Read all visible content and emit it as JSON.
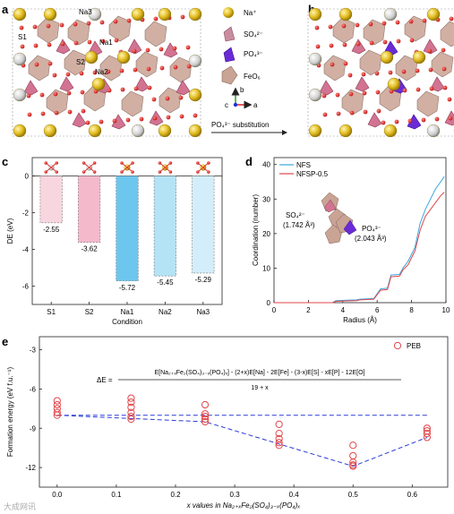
{
  "panels": {
    "a": {
      "letter": "a"
    },
    "b": {
      "letter": "b"
    },
    "c": {
      "letter": "c"
    },
    "d": {
      "letter": "d"
    },
    "e": {
      "letter": "e"
    }
  },
  "crystal": {
    "site_labels": [
      "Na3",
      "S1",
      "Na1",
      "S2",
      "Na2"
    ],
    "legend": [
      {
        "label": "Na⁺",
        "color": "#e8c431",
        "shape": "sphere"
      },
      {
        "label": "SO₄²⁻",
        "color": "#c98da0",
        "shape": "tetrahedron"
      },
      {
        "label": "PO₄³⁻",
        "color": "#6a2bd6",
        "shape": "tetrahedron"
      },
      {
        "label": "FeO₆",
        "color": "#c9a394",
        "shape": "octahedron"
      }
    ],
    "axes": {
      "b": "b",
      "c": "c",
      "a": "a"
    },
    "arrow_label": "PO₄³⁻ substitution"
  },
  "chart_data": [
    {
      "panel": "c",
      "type": "bar",
      "categories": [
        "S1",
        "S2",
        "Na1",
        "Na2",
        "Na3"
      ],
      "values": [
        -2.55,
        -3.62,
        -5.72,
        -5.45,
        -5.29
      ],
      "value_labels": [
        "-2.55",
        "-3.62",
        "-5.72",
        "-5.45",
        "-5.29"
      ],
      "colors": [
        "#f8d6e0",
        "#f4b9cb",
        "#6cc6ee",
        "#b5e3f6",
        "#d3eefa"
      ],
      "xlabel": "Condition",
      "ylabel": "DE (eV)",
      "ylim": [
        -7,
        1
      ],
      "yticks": [
        0,
        -2,
        -4,
        -6
      ],
      "ytick_labels": [
        "0",
        "-2",
        "-4",
        "-6"
      ]
    },
    {
      "panel": "d",
      "type": "line",
      "xlabel": "Radius (Å)",
      "ylabel": "Coordination (number)",
      "xlim": [
        0,
        10
      ],
      "ylim": [
        0,
        42
      ],
      "xticks": [
        0,
        2,
        4,
        6,
        8,
        10
      ],
      "xtick_labels": [
        "0",
        "2",
        "4",
        "6",
        "8",
        "10"
      ],
      "yticks": [
        0,
        10,
        20,
        30,
        40
      ],
      "ytick_labels": [
        "0",
        "10",
        "20",
        "30",
        "40"
      ],
      "legend_position": "top-left",
      "series": [
        {
          "name": "NFS",
          "color": "#3ba7dd",
          "x": [
            0,
            3.4,
            3.6,
            4.8,
            5.0,
            5.8,
            6.2,
            6.6,
            6.8,
            7.3,
            7.5,
            7.8,
            8.0,
            8.2,
            8.5,
            8.8,
            9.1,
            9.4,
            9.7,
            9.9
          ],
          "y": [
            0,
            0,
            0.6,
            0.8,
            1.0,
            1.2,
            4.0,
            4.2,
            8.0,
            8.2,
            10.0,
            12.0,
            14.0,
            16.0,
            23.0,
            27.0,
            30.0,
            33.0,
            35.0,
            36.5
          ]
        },
        {
          "name": "NFSP-0.5",
          "color": "#e0464a",
          "x": [
            0,
            3.4,
            3.6,
            4.8,
            5.0,
            5.8,
            6.2,
            6.6,
            6.8,
            7.3,
            7.5,
            7.8,
            8.0,
            8.2,
            8.5,
            8.8,
            9.1,
            9.4,
            9.7,
            9.9
          ],
          "y": [
            0,
            0,
            0.4,
            0.6,
            0.8,
            1.0,
            3.6,
            3.8,
            7.5,
            7.7,
            9.5,
            11.0,
            13.0,
            15.0,
            21.0,
            25.0,
            27.0,
            29.0,
            31.0,
            32.0
          ]
        }
      ],
      "annotations": [
        {
          "text": "SO₄²⁻"
        },
        {
          "text": "(1.742 Å³)"
        },
        {
          "text": "PO₄³⁻"
        },
        {
          "text": "(2.043 Å³)"
        }
      ]
    },
    {
      "panel": "e",
      "type": "scatter",
      "xlabel": "x values in Na₂₊ₓFe₂(SO₄)₃₋ₓ(PO₄)ₓ",
      "ylabel": "Formation energy (eV f.u.⁻¹)",
      "xlim": [
        -0.03,
        0.66
      ],
      "ylim": [
        -13.5,
        -2
      ],
      "xticks": [
        0.0,
        0.1,
        0.2,
        0.3,
        0.4,
        0.5,
        0.6
      ],
      "xtick_labels": [
        "0.0",
        "0.1",
        "0.2",
        "0.3",
        "0.4",
        "0.5",
        "0.6"
      ],
      "yticks": [
        -3,
        -6,
        -9,
        -12
      ],
      "ytick_labels": [
        "-3",
        "-6",
        "-9",
        "-12"
      ],
      "legend": "PEB",
      "legend_position": "top-right",
      "marker_color": "#e0464a",
      "points": [
        {
          "x": 0.0,
          "y": -6.9
        },
        {
          "x": 0.0,
          "y": -7.2
        },
        {
          "x": 0.0,
          "y": -7.5
        },
        {
          "x": 0.0,
          "y": -7.8
        },
        {
          "x": 0.0,
          "y": -8.0
        },
        {
          "x": 0.125,
          "y": -6.7
        },
        {
          "x": 0.125,
          "y": -7.0
        },
        {
          "x": 0.125,
          "y": -7.4
        },
        {
          "x": 0.125,
          "y": -7.8
        },
        {
          "x": 0.125,
          "y": -8.1
        },
        {
          "x": 0.125,
          "y": -8.3
        },
        {
          "x": 0.25,
          "y": -7.2
        },
        {
          "x": 0.25,
          "y": -7.9
        },
        {
          "x": 0.25,
          "y": -8.1
        },
        {
          "x": 0.25,
          "y": -8.3
        },
        {
          "x": 0.25,
          "y": -8.5
        },
        {
          "x": 0.375,
          "y": -8.7
        },
        {
          "x": 0.375,
          "y": -9.4
        },
        {
          "x": 0.375,
          "y": -9.8
        },
        {
          "x": 0.375,
          "y": -10.1
        },
        {
          "x": 0.375,
          "y": -10.3
        },
        {
          "x": 0.5,
          "y": -10.3
        },
        {
          "x": 0.5,
          "y": -11.1
        },
        {
          "x": 0.5,
          "y": -11.6
        },
        {
          "x": 0.5,
          "y": -11.8
        },
        {
          "x": 0.5,
          "y": -11.9
        },
        {
          "x": 0.625,
          "y": -9.0
        },
        {
          "x": 0.625,
          "y": -9.2
        },
        {
          "x": 0.625,
          "y": -9.4
        },
        {
          "x": 0.625,
          "y": -9.7
        }
      ],
      "hull": {
        "x": [
          0.0,
          0.25,
          0.5,
          0.625
        ],
        "y": [
          -8.0,
          -8.5,
          -11.9,
          -9.7
        ]
      },
      "reference": {
        "x": [
          0.0,
          0.625
        ],
        "y": [
          -8.0,
          -8.0
        ]
      },
      "equation": {
        "lhs": "ΔE =",
        "numerator": "E[Na₂₊ₓFe₂(SO₄)₃₋ₓ(PO₄)ₓ] - (2+x)E[Na] - 2E[Fe] - (3-x)E[S] - xE[P] - 12E[O]",
        "denominator": "19 + x"
      }
    }
  ],
  "watermark": "大成网讯"
}
